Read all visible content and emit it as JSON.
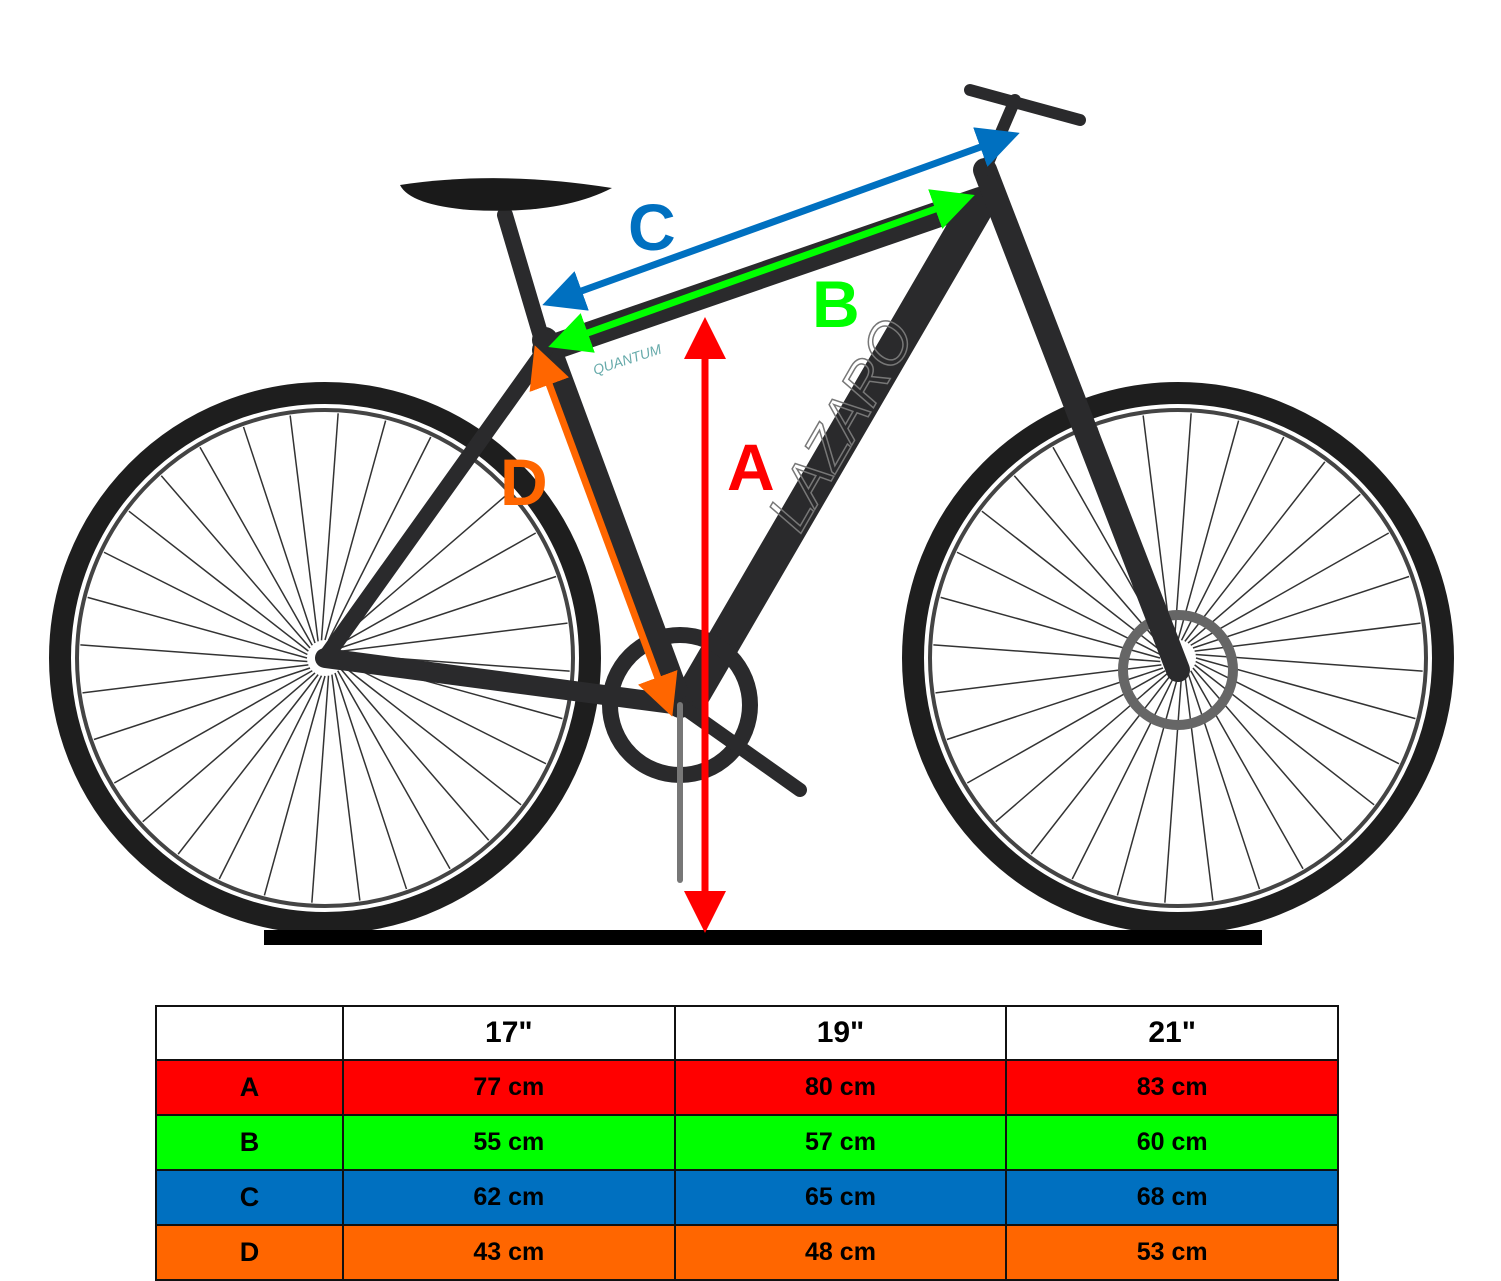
{
  "diagram": {
    "brand_on_frame": "LAZARO",
    "model_on_frame": "QUANTUM",
    "measurements": [
      {
        "label": "A",
        "color": "#ff0000"
      },
      {
        "label": "B",
        "color": "#00ff00"
      },
      {
        "label": "C",
        "color": "#0070c0"
      },
      {
        "label": "D",
        "color": "#ff6600"
      }
    ]
  },
  "size_table": {
    "headers": [
      "",
      "17\"",
      "19\"",
      "21\""
    ],
    "rows": [
      {
        "label": "A",
        "color": "#ff0000",
        "values": [
          "77 cm",
          "80 cm",
          "83 cm"
        ]
      },
      {
        "label": "B",
        "color": "#00ff00",
        "values": [
          "55 cm",
          "57 cm",
          "60 cm"
        ]
      },
      {
        "label": "C",
        "color": "#0070c0",
        "values": [
          "62 cm",
          "65 cm",
          "68 cm"
        ]
      },
      {
        "label": "D",
        "color": "#ff6600",
        "values": [
          "43 cm",
          "48 cm",
          "53 cm"
        ]
      }
    ]
  }
}
